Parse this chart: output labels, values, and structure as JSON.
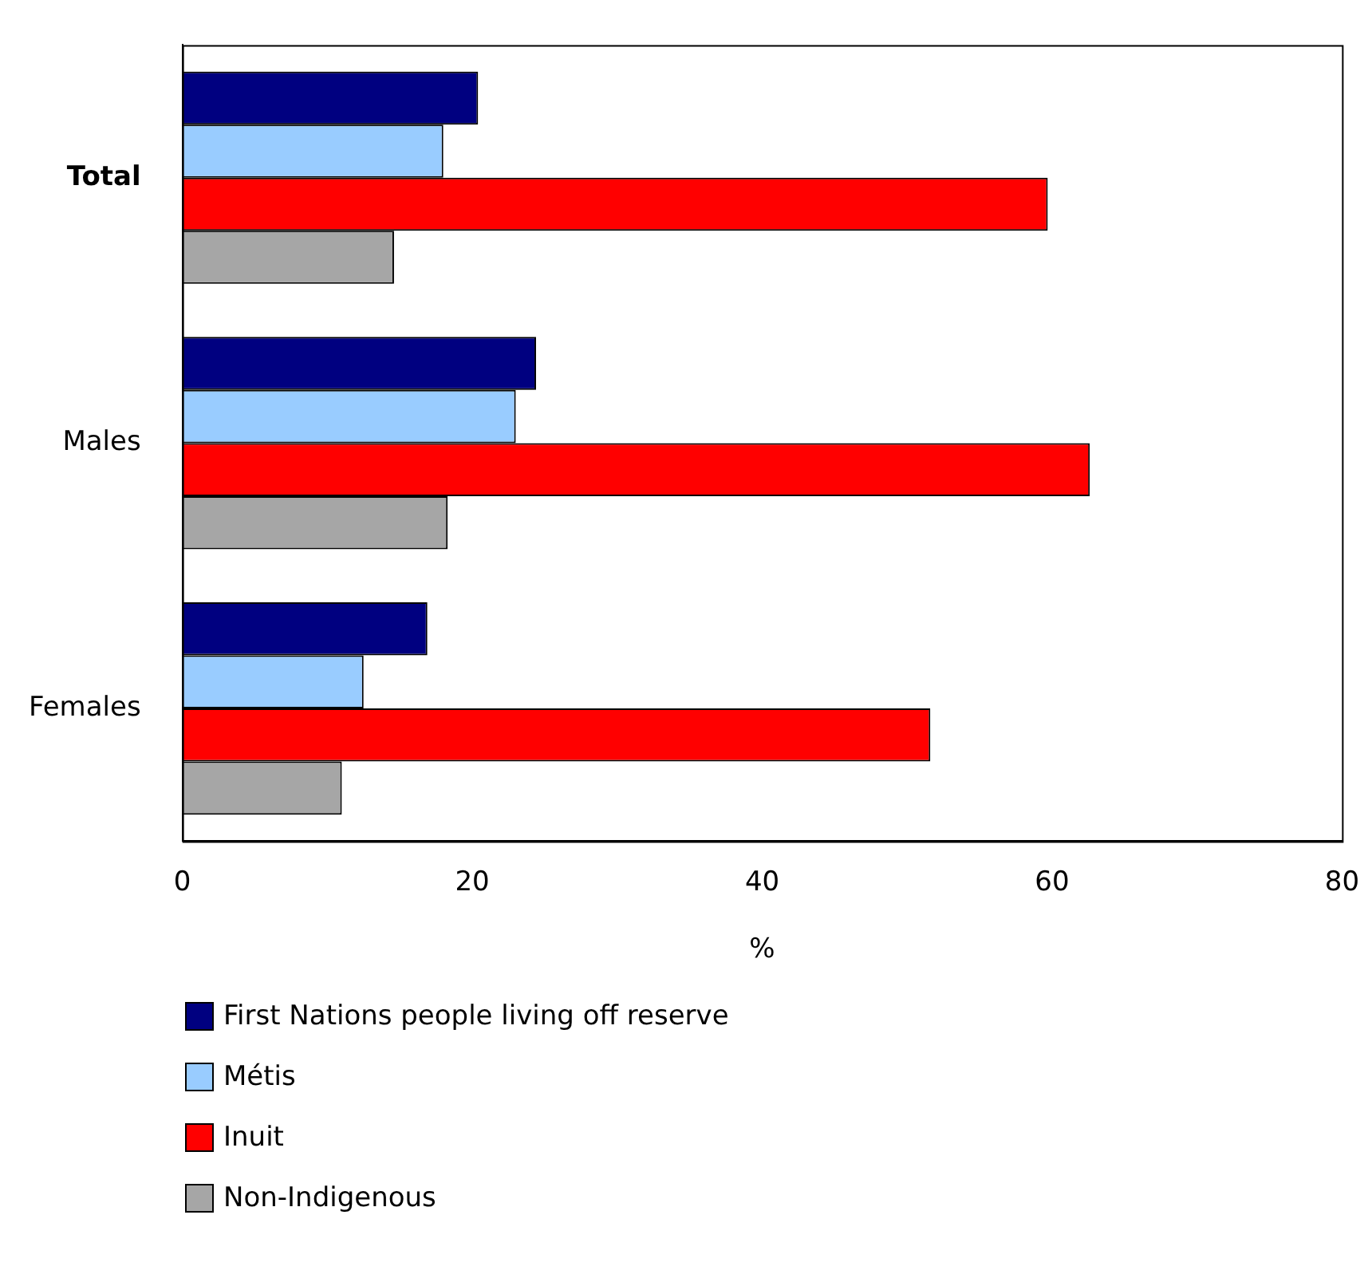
{
  "chart_data": {
    "type": "bar",
    "orientation": "horizontal",
    "xlabel": "%",
    "categories": [
      "Total",
      "Males",
      "Females"
    ],
    "series": [
      {
        "name": "First Nations people living off reserve",
        "color": "#000080",
        "values": [
          20.4,
          24.4,
          16.9
        ]
      },
      {
        "name": "Métis",
        "color": "#99ccff",
        "values": [
          18.0,
          23.0,
          12.5
        ]
      },
      {
        "name": "Inuit",
        "color": "#ff0000",
        "values": [
          59.7,
          62.6,
          51.6
        ]
      },
      {
        "name": "Non-Indigenous",
        "color": "#a6a6a6",
        "values": [
          14.6,
          18.3,
          11.0
        ]
      }
    ],
    "xlim": [
      0,
      80
    ],
    "xticks": [
      0,
      20,
      40,
      60,
      80
    ],
    "grid": false,
    "legend": "bottom"
  }
}
